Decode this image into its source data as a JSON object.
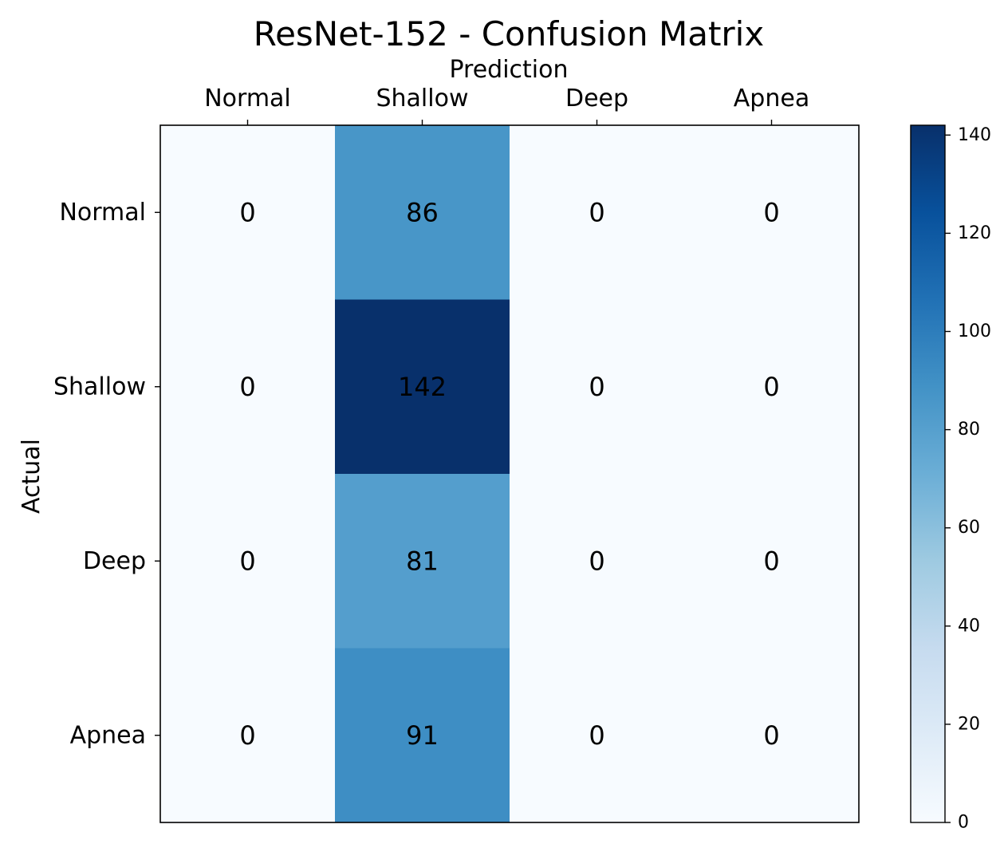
{
  "chart_data": {
    "type": "heatmap",
    "title": "ResNet-152 - Confusion Matrix",
    "xlabel": "Prediction",
    "ylabel": "Actual",
    "x_categories": [
      "Normal",
      "Shallow",
      "Deep",
      "Apnea"
    ],
    "y_categories": [
      "Normal",
      "Shallow",
      "Deep",
      "Apnea"
    ],
    "values": [
      [
        0,
        86,
        0,
        0
      ],
      [
        0,
        142,
        0,
        0
      ],
      [
        0,
        81,
        0,
        0
      ],
      [
        0,
        91,
        0,
        0
      ]
    ],
    "colormap": "Blues",
    "colorbar": {
      "min": 0,
      "max": 142,
      "ticks": [
        "0",
        "20",
        "40",
        "60",
        "80",
        "100",
        "120",
        "140"
      ]
    },
    "x_axis_position": "top",
    "grid": false,
    "legend": "none"
  }
}
